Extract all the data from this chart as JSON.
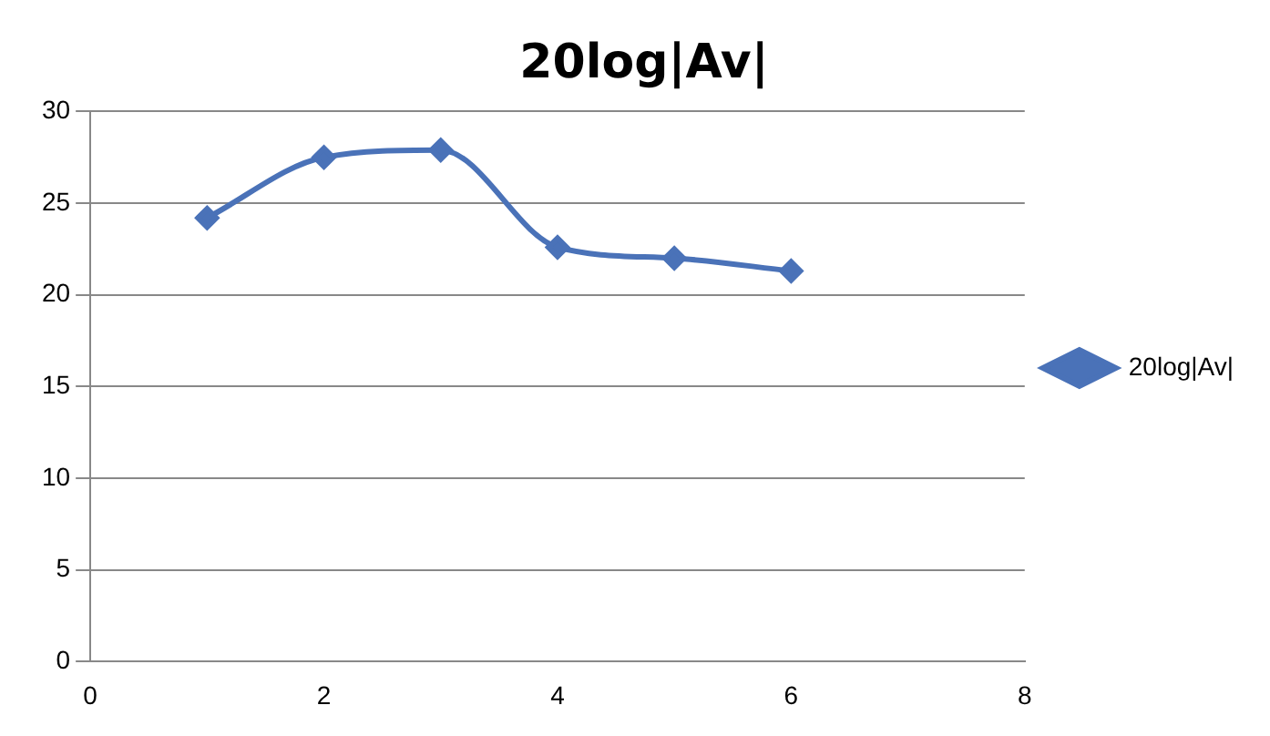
{
  "chart_data": {
    "type": "line",
    "title": "20log|Av|",
    "x": [
      1,
      2,
      3,
      4,
      5,
      6
    ],
    "series": [
      {
        "name": "20log|Av|",
        "color": "#4a72b8",
        "values": [
          24.2,
          27.5,
          27.9,
          22.6,
          22,
          21.3
        ]
      }
    ],
    "xlim": [
      0,
      8
    ],
    "xticks": [
      0,
      2,
      4,
      6,
      8
    ],
    "ylim": [
      0,
      30
    ],
    "yticks": [
      0,
      5,
      10,
      15,
      20,
      25,
      30
    ],
    "grid": "y",
    "legend": "right",
    "marker": "diamond",
    "line_style": "solid"
  }
}
